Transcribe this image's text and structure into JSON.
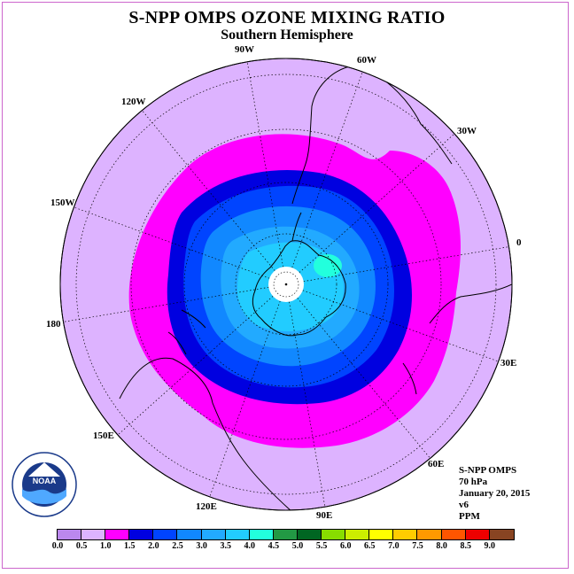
{
  "header": {
    "title": "S-NPP OMPS OZONE MIXING RATIO",
    "subtitle": "Southern Hemisphere"
  },
  "map": {
    "projection": "south-polar-stereographic",
    "longitude_labels": [
      "90W",
      "60W",
      "30W",
      "0",
      "30E",
      "60E",
      "90E",
      "120E",
      "150E",
      "180",
      "150W",
      "120W"
    ],
    "no_data_region": "south-pole"
  },
  "info": {
    "instrument": "S-NPP OMPS",
    "level": "70 hPa",
    "date": "January 20, 2015",
    "version": "v6",
    "units": "PPM"
  },
  "legend": {
    "ticks": [
      "0.0",
      "0.5",
      "1.0",
      "1.5",
      "2.0",
      "2.5",
      "3.0",
      "3.5",
      "4.0",
      "4.5",
      "5.0",
      "5.5",
      "6.0",
      "6.5",
      "7.0",
      "7.5",
      "8.0",
      "8.5",
      "9.0"
    ],
    "colors": [
      "#bb88ee",
      "#ddb3ff",
      "#ff00ff",
      "#0000e0",
      "#0044ff",
      "#1188ff",
      "#22aaff",
      "#22ccff",
      "#22ffdd",
      "#229944",
      "#006622",
      "#88dd00",
      "#ccee00",
      "#ffff00",
      "#ffcc00",
      "#ff9900",
      "#ff5500",
      "#ee0000",
      "#884422"
    ]
  },
  "logo": {
    "text": "NOAA",
    "ring_text": "NATIONAL OCEANIC AND ATMOSPHERIC ADMINISTRATION · U.S. DEPARTMENT OF COMMERCE"
  }
}
